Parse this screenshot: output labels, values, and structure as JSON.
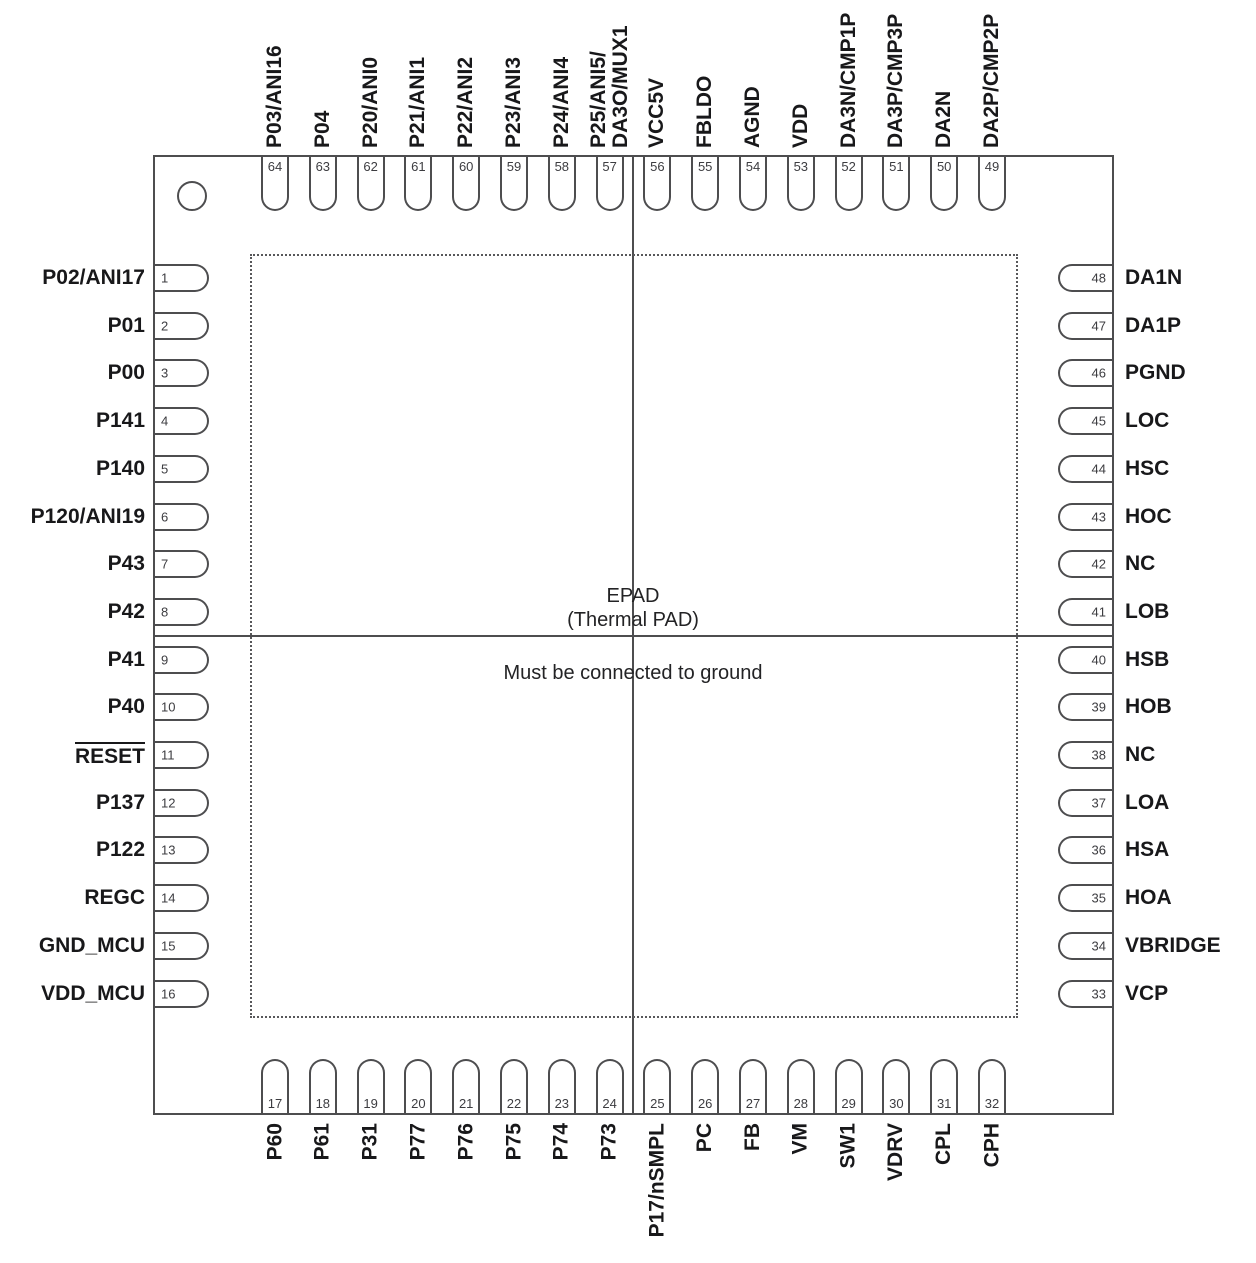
{
  "diagram": {
    "kind": "64-pin IC package pinout",
    "epad": {
      "title": "EPAD",
      "subtitle": "(Thermal PAD)",
      "note": "Must be connected to ground"
    },
    "colors": {
      "line": "#4d4d4f",
      "label_text": "#18181a",
      "number_text": "#3c3c40",
      "background": "#ffffff"
    },
    "pins": {
      "top": [
        {
          "num": "64",
          "label": "P03/ANI16"
        },
        {
          "num": "63",
          "label": "P04"
        },
        {
          "num": "62",
          "label": "P20/ANI0"
        },
        {
          "num": "61",
          "label": "P21/ANI1"
        },
        {
          "num": "60",
          "label": "P22/ANI2"
        },
        {
          "num": "59",
          "label": "P23/ANI3"
        },
        {
          "num": "58",
          "label": "P24/ANI4"
        },
        {
          "num": "57",
          "label": "P25/ANI5/\nDA3O/MUX1"
        },
        {
          "num": "56",
          "label": "VCC5V"
        },
        {
          "num": "55",
          "label": "FBLDO"
        },
        {
          "num": "54",
          "label": "AGND"
        },
        {
          "num": "53",
          "label": "VDD"
        },
        {
          "num": "52",
          "label": "DA3N/CMP1P"
        },
        {
          "num": "51",
          "label": "DA3P/CMP3P"
        },
        {
          "num": "50",
          "label": "DA2N"
        },
        {
          "num": "49",
          "label": "DA2P/CMP2P"
        }
      ],
      "left": [
        {
          "num": "1",
          "label": "P02/ANI17"
        },
        {
          "num": "2",
          "label": "P01"
        },
        {
          "num": "3",
          "label": "P00"
        },
        {
          "num": "4",
          "label": "P141"
        },
        {
          "num": "5",
          "label": "P140"
        },
        {
          "num": "6",
          "label": "P120/ANI19"
        },
        {
          "num": "7",
          "label": "P43"
        },
        {
          "num": "8",
          "label": "P42"
        },
        {
          "num": "9",
          "label": "P41"
        },
        {
          "num": "10",
          "label": "P40"
        },
        {
          "num": "11",
          "label": "RESET",
          "overline": true
        },
        {
          "num": "12",
          "label": "P137"
        },
        {
          "num": "13",
          "label": "P122"
        },
        {
          "num": "14",
          "label": "REGC"
        },
        {
          "num": "15",
          "label": "GND_MCU"
        },
        {
          "num": "16",
          "label": "VDD_MCU"
        }
      ],
      "bottom": [
        {
          "num": "17",
          "label": "P60"
        },
        {
          "num": "18",
          "label": "P61"
        },
        {
          "num": "19",
          "label": "P31"
        },
        {
          "num": "20",
          "label": "P77"
        },
        {
          "num": "21",
          "label": "P76"
        },
        {
          "num": "22",
          "label": "P75"
        },
        {
          "num": "23",
          "label": "P74"
        },
        {
          "num": "24",
          "label": "P73"
        },
        {
          "num": "25",
          "label": "P17/nSMPL"
        },
        {
          "num": "26",
          "label": "PC"
        },
        {
          "num": "27",
          "label": "FB"
        },
        {
          "num": "28",
          "label": "VM"
        },
        {
          "num": "29",
          "label": "SW1"
        },
        {
          "num": "30",
          "label": "VDRV"
        },
        {
          "num": "31",
          "label": "CPL"
        },
        {
          "num": "32",
          "label": "CPH"
        }
      ],
      "right": [
        {
          "num": "48",
          "label": "DA1N"
        },
        {
          "num": "47",
          "label": "DA1P"
        },
        {
          "num": "46",
          "label": "PGND"
        },
        {
          "num": "45",
          "label": "LOC"
        },
        {
          "num": "44",
          "label": "HSC"
        },
        {
          "num": "43",
          "label": "HOC"
        },
        {
          "num": "42",
          "label": "NC"
        },
        {
          "num": "41",
          "label": "LOB"
        },
        {
          "num": "40",
          "label": "HSB"
        },
        {
          "num": "39",
          "label": "HOB"
        },
        {
          "num": "38",
          "label": "NC"
        },
        {
          "num": "37",
          "label": "LOA"
        },
        {
          "num": "36",
          "label": "HSA"
        },
        {
          "num": "35",
          "label": "HOA"
        },
        {
          "num": "34",
          "label": "VBRIDGE"
        },
        {
          "num": "33",
          "label": "VCP"
        }
      ]
    }
  }
}
